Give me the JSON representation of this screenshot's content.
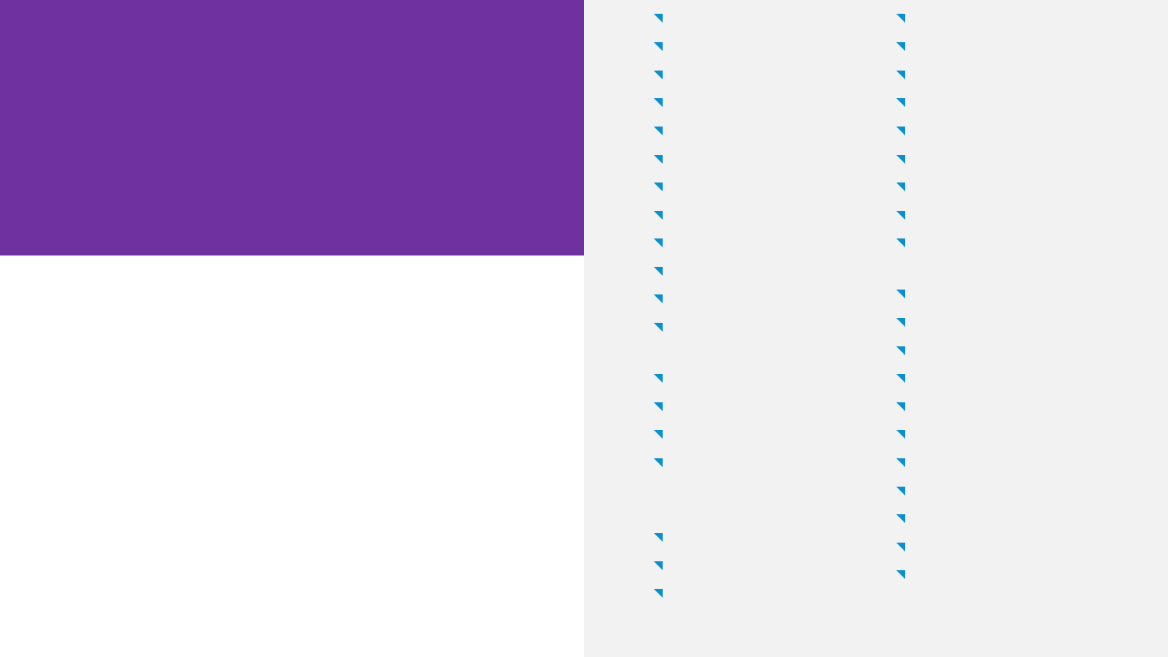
{
  "colors": {
    "hero_background": "#6F31A0",
    "side_background": "#F2F2F2",
    "marker_accent": "#0A90D0"
  },
  "icon": "corner-triangle-icon",
  "markers": {
    "left": 19,
    "right": 20
  }
}
